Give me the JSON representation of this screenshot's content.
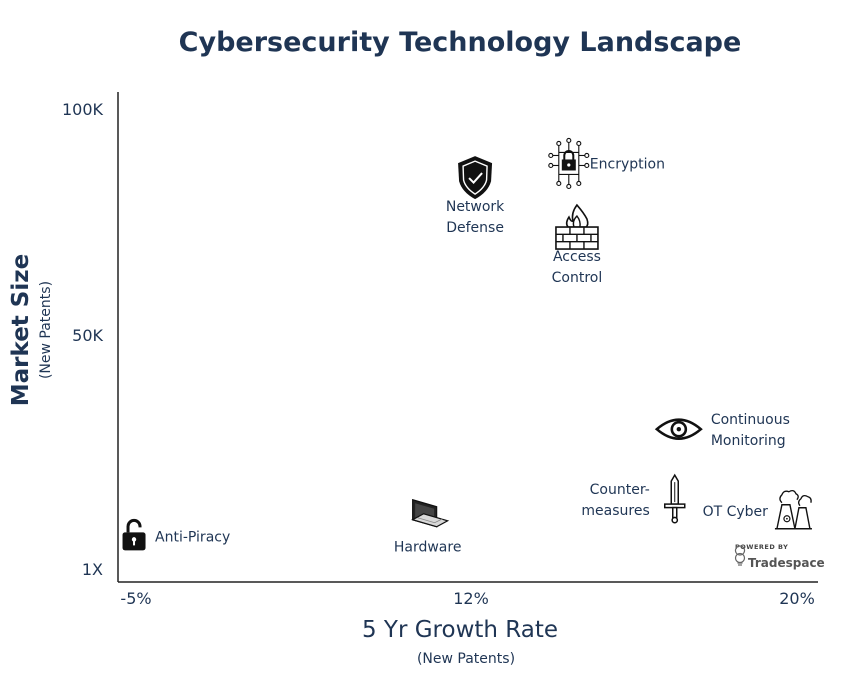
{
  "chart_data": {
    "type": "scatter",
    "title": "Cybersecurity Technology Landscape",
    "xlabel": "5 Yr Growth Rate",
    "xlabel_sub": "(New Patents)",
    "ylabel": "Market Size",
    "ylabel_sub": "(New Patents)",
    "x_ticks": [
      "-5%",
      "12%",
      "20%"
    ],
    "y_ticks": [
      "1X",
      "50K",
      "100K"
    ],
    "xlim": [
      -5,
      20
    ],
    "ylim": [
      1,
      100000
    ],
    "points": [
      {
        "name": "Network Defense",
        "lines": [
          "Network",
          "Defense"
        ],
        "x": 12.1,
        "y": 85000,
        "icon": "shield-check-icon",
        "label_pos": "below"
      },
      {
        "name": "Encryption",
        "lines": [
          "Encryption"
        ],
        "x": 14.4,
        "y": 88000,
        "icon": "circuit-lock-icon",
        "label_pos": "right"
      },
      {
        "name": "Access Control",
        "lines": [
          "Access",
          "Control"
        ],
        "x": 14.6,
        "y": 74000,
        "icon": "firewall-icon",
        "label_pos": "below"
      },
      {
        "name": "Continuous Monitoring",
        "lines": [
          "Continuous",
          "Monitoring"
        ],
        "x": 17.1,
        "y": 30000,
        "icon": "eye-icon",
        "label_pos": "right"
      },
      {
        "name": "Counter-measures",
        "lines": [
          "Counter-",
          "measures"
        ],
        "x": 17.0,
        "y": 15000,
        "icon": "sword-icon",
        "label_pos": "left"
      },
      {
        "name": "OT Cyber",
        "lines": [
          "OT Cyber"
        ],
        "x": 19.9,
        "y": 12500,
        "icon": "power-plant-icon",
        "label_pos": "left"
      },
      {
        "name": "Hardware",
        "lines": [
          "Hardware"
        ],
        "x": 9.8,
        "y": 11000,
        "icon": "laptop-icon",
        "label_pos": "below"
      },
      {
        "name": "Anti-Piracy",
        "lines": [
          "Anti-Piracy"
        ],
        "x": -5.1,
        "y": 7000,
        "icon": "unlock-icon",
        "label_pos": "right"
      }
    ]
  },
  "branding": {
    "powered_by": "POWERED BY",
    "name": "Tradespace"
  }
}
